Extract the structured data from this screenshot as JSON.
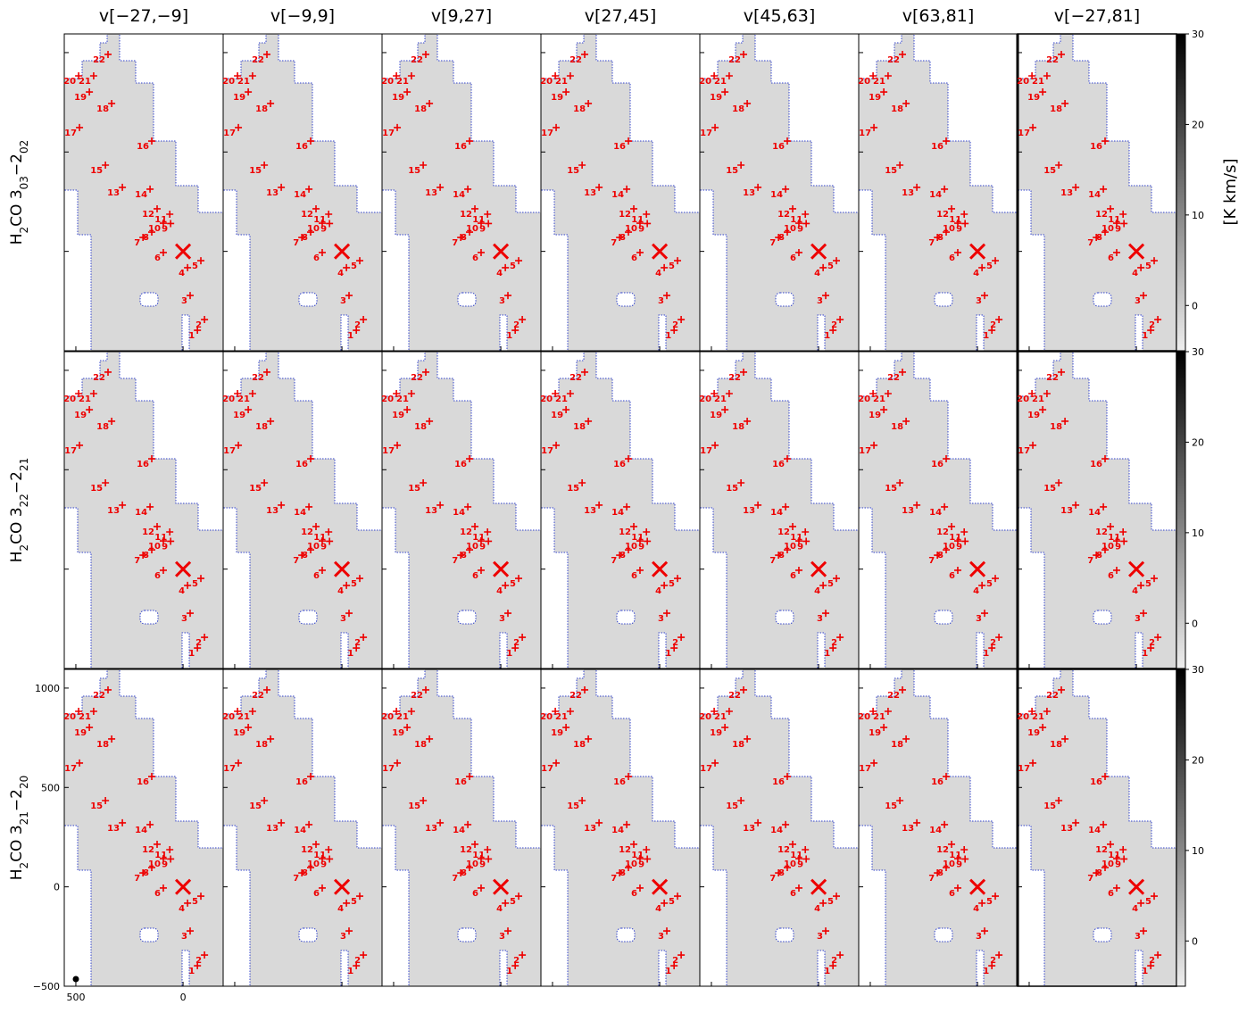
{
  "columns": [
    "v[−27,−9]",
    "v[−9,9]",
    "v[9,27]",
    "v[27,45]",
    "v[45,63]",
    "v[63,81]",
    "v[−27,81]"
  ],
  "rows": [
    [
      {
        "text": "H",
        "sub": false
      },
      {
        "text": "2",
        "sub": true
      },
      {
        "text": "CO  3",
        "sub": false
      },
      {
        "text": "03",
        "sub": true
      },
      {
        "text": "−2",
        "sub": false
      },
      {
        "text": "02",
        "sub": true
      }
    ],
    [
      {
        "text": "H",
        "sub": false
      },
      {
        "text": "2",
        "sub": true
      },
      {
        "text": "CO  3",
        "sub": false
      },
      {
        "text": "22",
        "sub": true
      },
      {
        "text": "−2",
        "sub": false
      },
      {
        "text": "21",
        "sub": true
      }
    ],
    [
      {
        "text": "H",
        "sub": false
      },
      {
        "text": "2",
        "sub": true
      },
      {
        "text": "CO  3",
        "sub": false
      },
      {
        "text": "21",
        "sub": true
      },
      {
        "text": "−2",
        "sub": false
      },
      {
        "text": "20",
        "sub": true
      }
    ]
  ],
  "axes": {
    "xlim": [
      554,
      -187
    ],
    "ylim": [
      -500,
      1094
    ],
    "xticks": [
      500,
      0
    ],
    "yticks": [
      {
        "value": -500,
        "label": "−500"
      },
      0,
      500,
      1000
    ]
  },
  "colorbar": {
    "label": "[K km/s]",
    "lim": [
      -5,
      30
    ],
    "ticks": [
      0,
      10,
      20,
      30
    ]
  },
  "center": {
    "x": 0,
    "y": 0
  },
  "sources": [
    {
      "label": "1",
      "x": -67,
      "y": -397
    },
    {
      "label": "2",
      "x": -100,
      "y": -343
    },
    {
      "label": "3",
      "x": -33,
      "y": -222
    },
    {
      "label": "4",
      "x": -21,
      "y": -82
    },
    {
      "label": "5",
      "x": -83,
      "y": -47
    },
    {
      "label": "6",
      "x": 92,
      "y": -6
    },
    {
      "label": "7",
      "x": 187,
      "y": 70
    },
    {
      "label": "8",
      "x": 146,
      "y": 97
    },
    {
      "label": "9",
      "x": 58,
      "y": 140
    },
    {
      "label": "10",
      "x": 92,
      "y": 142
    },
    {
      "label": "11",
      "x": 62,
      "y": 187
    },
    {
      "label": "12",
      "x": 121,
      "y": 214
    },
    {
      "label": "13",
      "x": 283,
      "y": 322
    },
    {
      "label": "14",
      "x": 154,
      "y": 313
    },
    {
      "label": "15",
      "x": 362,
      "y": 434
    },
    {
      "label": "16",
      "x": 146,
      "y": 555
    },
    {
      "label": "17",
      "x": 483,
      "y": 623
    },
    {
      "label": "18",
      "x": 333,
      "y": 744
    },
    {
      "label": "19",
      "x": 437,
      "y": 802
    },
    {
      "label": "20",
      "x": 487,
      "y": 883
    },
    {
      "label": "21",
      "x": 417,
      "y": 883
    },
    {
      "label": "22",
      "x": 350,
      "y": 991
    }
  ]
}
